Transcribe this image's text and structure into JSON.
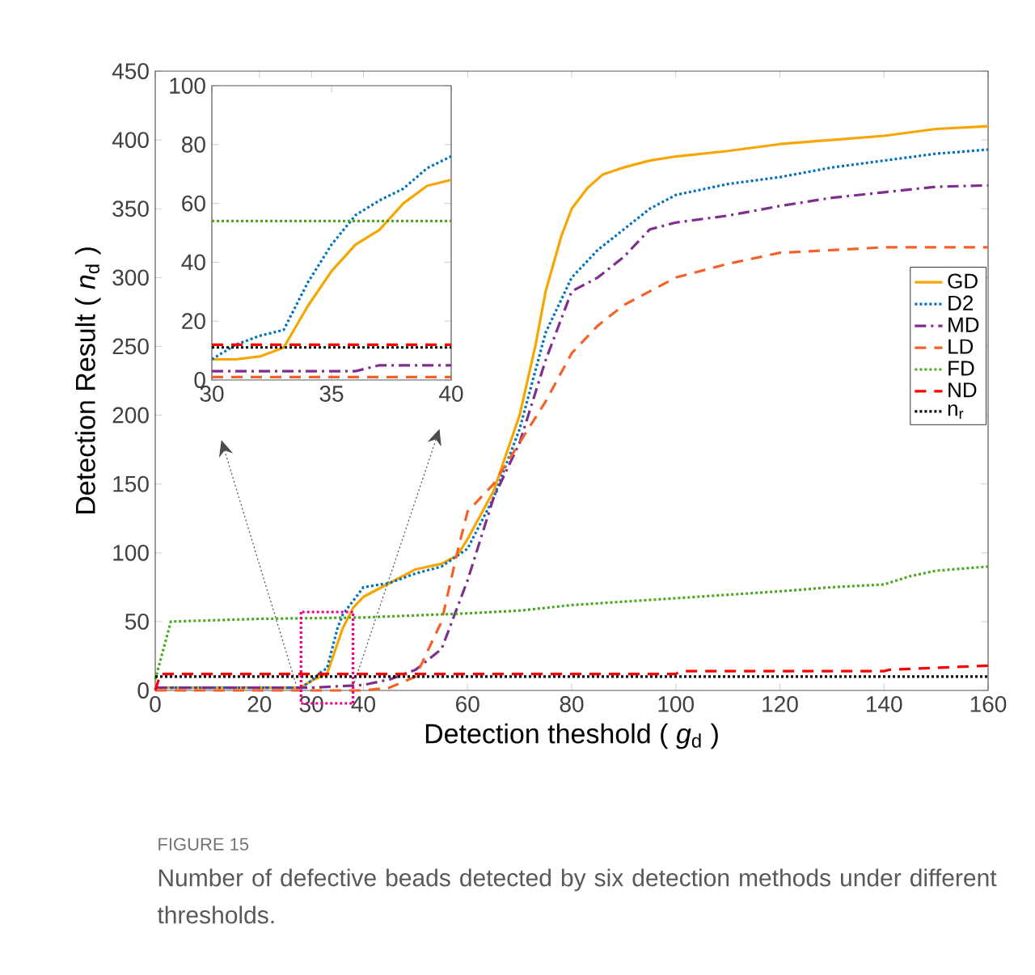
{
  "chart_data": [
    {
      "type": "line",
      "xlabel": "Detection theshold ( *g*$_{d}$ )",
      "ylabel": "Detection Result ( *n*$_{d}$ )",
      "xlim": [
        0,
        160
      ],
      "xticks": [
        0,
        20,
        30,
        40,
        60,
        80,
        100,
        120,
        140,
        160
      ],
      "ylim": [
        0,
        450
      ],
      "yticks": [
        0,
        50,
        100,
        150,
        200,
        250,
        300,
        350,
        400,
        450
      ],
      "legend": "right",
      "marker": "none",
      "annotations": [
        "FIGURE 15",
        "Number of defective beads detected by six detection methods under different thresholds."
      ],
      "series": [
        {
          "name": "GD",
          "color": "#f7a600",
          "line_style": "solid",
          "x": [
            0,
            28,
            30,
            33,
            36,
            38,
            40,
            45,
            50,
            55,
            58,
            60,
            65,
            70,
            73,
            75,
            78,
            80,
            83,
            86,
            90,
            95,
            100,
            110,
            120,
            130,
            140,
            150,
            160
          ],
          "values": [
            2,
            2,
            7,
            12,
            45,
            60,
            68,
            78,
            88,
            92,
            98,
            110,
            145,
            200,
            250,
            290,
            330,
            350,
            365,
            375,
            380,
            385,
            388,
            392,
            397,
            400,
            403,
            408,
            410
          ]
        },
        {
          "name": "D2",
          "color": "#0072bd",
          "line_style": "dotted",
          "x": [
            0,
            28,
            30,
            32,
            33,
            35,
            36,
            38,
            40,
            45,
            50,
            55,
            60,
            65,
            70,
            75,
            80,
            85,
            90,
            95,
            100,
            110,
            120,
            130,
            140,
            150,
            160
          ],
          "values": [
            2,
            2,
            7,
            14,
            16,
            45,
            55,
            65,
            75,
            78,
            85,
            90,
            103,
            140,
            190,
            260,
            300,
            320,
            335,
            350,
            360,
            368,
            373,
            380,
            385,
            390,
            393
          ]
        },
        {
          "name": "MD",
          "color": "#7e2f8e",
          "line_style": "dashdot",
          "x": [
            0,
            30,
            40,
            45,
            50,
            55,
            60,
            65,
            70,
            75,
            80,
            85,
            90,
            95,
            100,
            110,
            120,
            130,
            140,
            150,
            160
          ],
          "values": [
            2,
            2,
            4,
            8,
            15,
            30,
            80,
            140,
            180,
            240,
            290,
            300,
            315,
            335,
            340,
            345,
            352,
            358,
            362,
            366,
            367
          ]
        },
        {
          "name": "LD",
          "color": "#f4622a",
          "line_style": "dashed",
          "x": [
            0,
            40,
            45,
            50,
            55,
            58,
            60,
            65,
            70,
            75,
            80,
            85,
            90,
            95,
            100,
            110,
            120,
            130,
            140,
            160
          ],
          "values": [
            0,
            0,
            2,
            10,
            50,
            100,
            130,
            150,
            180,
            210,
            245,
            265,
            280,
            290,
            300,
            310,
            318,
            320,
            322,
            322
          ]
        },
        {
          "name": "FD",
          "color": "#4aa81c",
          "line_style": "dotted",
          "x": [
            0,
            3,
            20,
            40,
            60,
            70,
            80,
            100,
            120,
            130,
            140,
            145,
            150,
            160
          ],
          "values": [
            8,
            50,
            52,
            53,
            56,
            58,
            62,
            67,
            72,
            75,
            77,
            83,
            87,
            90
          ]
        },
        {
          "name": "ND",
          "color": "#ff0000",
          "line_style": "dashed",
          "x": [
            0,
            1,
            100,
            101,
            140,
            141,
            160
          ],
          "values": [
            0,
            12,
            12,
            14,
            14,
            15,
            18
          ]
        },
        {
          "name": "n$_{r}$",
          "color": "#000000",
          "line_style": "dotted",
          "x": [
            0,
            160
          ],
          "values": [
            10,
            10
          ]
        }
      ]
    },
    {
      "type": "line",
      "xlim": [
        30,
        40
      ],
      "xticks": [
        30,
        35,
        40
      ],
      "ylim": [
        0,
        100
      ],
      "yticks": [
        0,
        20,
        40,
        60,
        80,
        100
      ],
      "marker": "none",
      "series": [
        {
          "color": "#f7a600",
          "line_style": "solid",
          "x": [
            30,
            31,
            32,
            33,
            34,
            35,
            36,
            37,
            38,
            39,
            40
          ],
          "values": [
            7,
            7,
            8,
            11,
            25,
            37,
            46,
            51,
            60,
            66,
            68
          ]
        },
        {
          "color": "#0072bd",
          "line_style": "dotted",
          "x": [
            30,
            31,
            32,
            33,
            34,
            35,
            36,
            37,
            38,
            39,
            40
          ],
          "values": [
            7,
            12,
            15,
            17,
            33,
            46,
            56,
            61,
            65,
            72,
            76
          ]
        },
        {
          "color": "#7e2f8e",
          "line_style": "dashdot",
          "x": [
            30,
            36,
            37,
            40
          ],
          "values": [
            3,
            3,
            5,
            5
          ]
        },
        {
          "color": "#f4622a",
          "line_style": "dashed",
          "x": [
            30,
            40
          ],
          "values": [
            1,
            1
          ]
        },
        {
          "color": "#4aa81c",
          "line_style": "dotted",
          "x": [
            30,
            40
          ],
          "values": [
            54,
            54
          ]
        },
        {
          "color": "#ff0000",
          "line_style": "dashed",
          "x": [
            30,
            40
          ],
          "values": [
            12,
            12
          ]
        },
        {
          "color": "#000000",
          "line_style": "dotted",
          "x": [
            30,
            40
          ],
          "values": [
            11,
            11
          ]
        }
      ]
    }
  ]
}
